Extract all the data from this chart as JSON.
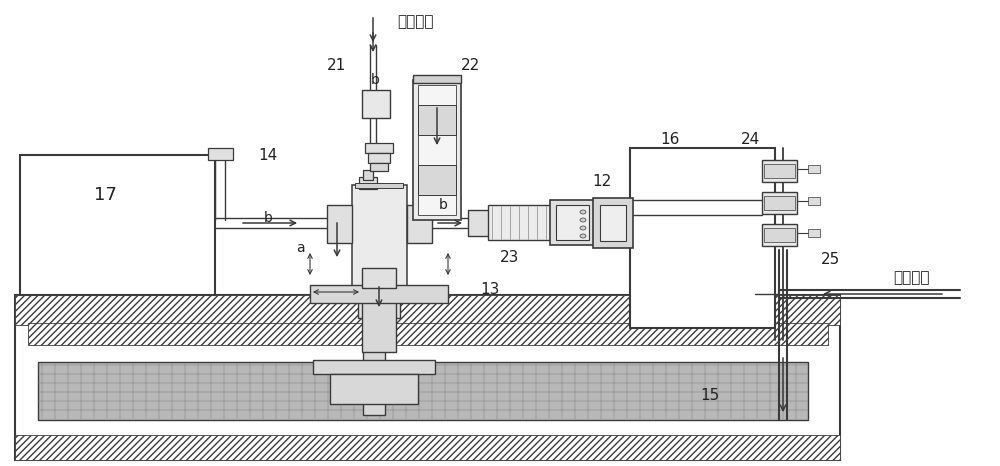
{
  "bg": "#ffffff",
  "lc": "#3a3a3a",
  "lw": 1.1,
  "labels": {
    "process_gas": "工艺气体",
    "clean_gas": "清洗气体",
    "17": "17",
    "14": "14",
    "21": "21",
    "22": "22",
    "12": "12",
    "13": "13",
    "15": "15",
    "16": "16",
    "23": "23",
    "24": "24",
    "25": "25",
    "a": "a",
    "b": "b"
  },
  "figsize": [
    10.0,
    4.66
  ],
  "dpi": 100
}
